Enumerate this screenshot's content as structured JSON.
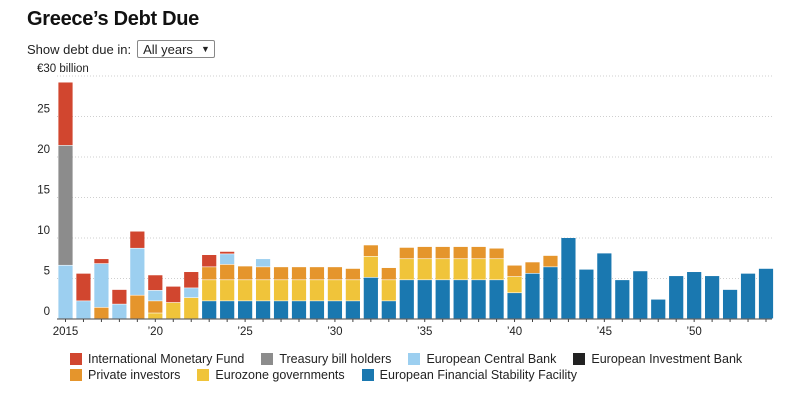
{
  "title": "Greece’s Debt Due",
  "control": {
    "label": "Show debt due in:",
    "selected": "All years"
  },
  "chart_data": {
    "type": "bar",
    "stacked": true,
    "ylim": [
      0,
      30
    ],
    "y_ticks": [
      "0",
      "5",
      "10",
      "15",
      "20",
      "25",
      "€30 billion"
    ],
    "x_tick_labels": [
      "2015",
      "’20",
      "’25",
      "’30",
      "’35",
      "’40",
      "’45",
      "’50"
    ],
    "grid": true,
    "legend_position": "bottom",
    "categories": [
      "2015",
      "2016",
      "2017",
      "2018",
      "2019",
      "2020",
      "2021",
      "2022",
      "2023",
      "2024",
      "2025",
      "2026",
      "2027",
      "2028",
      "2029",
      "2030",
      "2031",
      "2032",
      "2033",
      "2034",
      "2035",
      "2036",
      "2037",
      "2038",
      "2039",
      "2040",
      "2041",
      "2042",
      "2043",
      "2044",
      "2045",
      "2046",
      "2047",
      "2048",
      "2049",
      "2050",
      "2051",
      "2052",
      "2053",
      "2054"
    ],
    "series": [
      {
        "name": "European Financial Stability Facility",
        "color": "#1a78b0",
        "values": [
          0,
          0,
          0,
          0,
          0,
          0,
          0,
          0,
          2.2,
          2.2,
          2.2,
          2.2,
          2.2,
          2.2,
          2.2,
          2.2,
          2.2,
          5.1,
          2.2,
          4.8,
          4.8,
          4.8,
          4.8,
          4.8,
          4.8,
          3.2,
          5.6,
          6.4,
          10.0,
          6.1,
          8.1,
          4.8,
          5.9,
          2.4,
          5.3,
          5.8,
          5.3,
          3.6,
          5.6,
          6.2
        ]
      },
      {
        "name": "Eurozone governments",
        "color": "#f0c43a",
        "values": [
          0,
          0,
          0,
          0,
          0,
          0.7,
          2.0,
          2.6,
          2.6,
          2.6,
          2.6,
          2.6,
          2.6,
          2.6,
          2.6,
          2.6,
          2.6,
          2.6,
          2.6,
          2.6,
          2.6,
          2.6,
          2.6,
          2.6,
          2.6,
          2.0,
          0,
          0,
          0,
          0,
          0,
          0,
          0,
          0,
          0,
          0,
          0,
          0,
          0,
          0
        ]
      },
      {
        "name": "Private investors",
        "color": "#e5952c",
        "values": [
          0,
          0,
          1.4,
          0,
          2.9,
          1.5,
          0,
          0,
          1.6,
          1.9,
          1.7,
          1.6,
          1.6,
          1.6,
          1.6,
          1.6,
          1.4,
          1.4,
          1.5,
          1.4,
          1.5,
          1.5,
          1.5,
          1.5,
          1.3,
          1.4,
          1.4,
          1.4,
          0,
          0,
          0,
          0,
          0,
          0,
          0,
          0,
          0,
          0,
          0,
          0
        ]
      },
      {
        "name": "European Central Bank",
        "color": "#9ccff0",
        "values": [
          6.6,
          2.2,
          5.4,
          1.8,
          5.8,
          1.3,
          0,
          1.2,
          0,
          1.3,
          0,
          1.0,
          0,
          0,
          0,
          0,
          0,
          0,
          0,
          0,
          0,
          0,
          0,
          0,
          0,
          0,
          0,
          0,
          0,
          0,
          0,
          0,
          0,
          0,
          0,
          0,
          0,
          0,
          0,
          0
        ]
      },
      {
        "name": "Treasury bill holders",
        "color": "#8c8c8c",
        "values": [
          14.8,
          0,
          0,
          0,
          0,
          0,
          0,
          0,
          0,
          0,
          0,
          0,
          0,
          0,
          0,
          0,
          0,
          0,
          0,
          0,
          0,
          0,
          0,
          0,
          0,
          0,
          0,
          0,
          0,
          0,
          0,
          0,
          0,
          0,
          0,
          0,
          0,
          0,
          0,
          0
        ]
      },
      {
        "name": "International Monetary Fund",
        "color": "#d1462f",
        "values": [
          7.8,
          3.4,
          0.6,
          1.8,
          2.1,
          1.9,
          2.0,
          2.0,
          1.5,
          0.3,
          0,
          0,
          0,
          0,
          0,
          0,
          0,
          0,
          0,
          0,
          0,
          0,
          0,
          0,
          0,
          0,
          0,
          0,
          0,
          0,
          0,
          0,
          0,
          0,
          0,
          0,
          0,
          0,
          0,
          0
        ]
      },
      {
        "name": "European Investment Bank",
        "color": "#222222",
        "values": [
          0,
          0,
          0,
          0,
          0,
          0,
          0,
          0,
          0,
          0,
          0,
          0,
          0,
          0,
          0,
          0,
          0,
          0,
          0,
          0,
          0,
          0,
          0,
          0,
          0,
          0,
          0,
          0,
          0,
          0,
          0,
          0,
          0,
          0,
          0,
          0,
          0,
          0,
          0,
          0
        ]
      }
    ]
  },
  "legend": {
    "rows": [
      [
        {
          "label": "International Monetary Fund",
          "color": "#d1462f"
        },
        {
          "label": "Treasury bill holders",
          "color": "#8c8c8c"
        },
        {
          "label": "European Central Bank",
          "color": "#9ccff0"
        },
        {
          "label": "European Investment Bank",
          "color": "#222222"
        }
      ],
      [
        {
          "label": "Private investors",
          "color": "#e5952c"
        },
        {
          "label": "Eurozone governments",
          "color": "#f0c43a"
        },
        {
          "label": "European Financial Stability Facility",
          "color": "#1a78b0"
        }
      ]
    ]
  }
}
